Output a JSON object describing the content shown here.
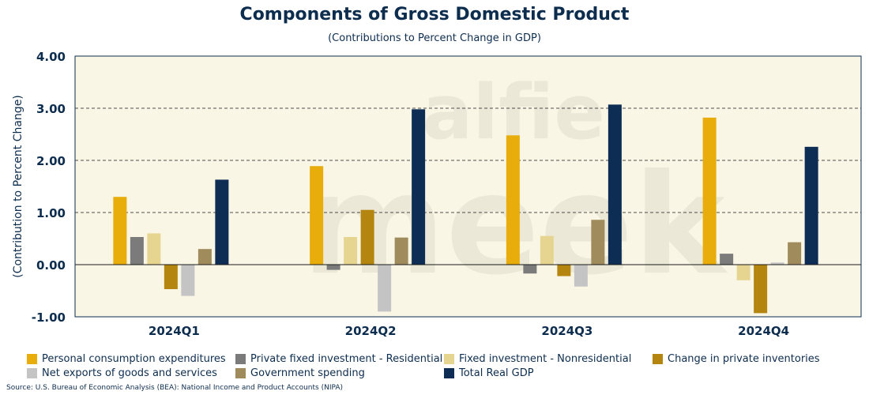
{
  "header": {
    "title": "Components of Gross Domestic Product",
    "subtitle": "(Contributions to Percent Change in GDP)"
  },
  "watermark": {
    "lines": [
      "alfie",
      "meek"
    ],
    "color": "#ebe8d7"
  },
  "chart_data": {
    "type": "bar",
    "categories": [
      "2024Q1",
      "2024Q2",
      "2024Q3",
      "2024Q4"
    ],
    "ylabel": "(Contribution to Percent Change)",
    "xlabel": "",
    "ylim": [
      -1.0,
      4.0
    ],
    "yticks": [
      -1.0,
      0.0,
      1.0,
      2.0,
      3.0,
      4.0
    ],
    "ytick_labels": [
      "-1.00",
      "0.00",
      "1.00",
      "2.00",
      "3.00",
      "4.00"
    ],
    "grid": "horizontal dashed",
    "legend_placement": "bottom",
    "plot_background": "#f9f6e6",
    "series": [
      {
        "name": "Personal consumption expenditures",
        "color": "#e8ad0b",
        "values": [
          1.3,
          1.89,
          2.48,
          2.82
        ]
      },
      {
        "name": "Private fixed investment - Residential",
        "color": "#7b7b7b",
        "values": [
          0.53,
          -0.1,
          -0.17,
          0.21
        ]
      },
      {
        "name": "Fixed investment - Nonresidential",
        "color": "#e6d591",
        "values": [
          0.6,
          0.53,
          0.55,
          -0.3
        ]
      },
      {
        "name": "Change in private inventories",
        "color": "#b5860f",
        "values": [
          -0.47,
          1.05,
          -0.22,
          -0.93
        ]
      },
      {
        "name": "Net exports of goods and services",
        "color": "#c4c4c4",
        "values": [
          -0.6,
          -0.9,
          -0.42,
          0.04
        ]
      },
      {
        "name": "Government spending",
        "color": "#a08b5c",
        "values": [
          0.3,
          0.52,
          0.86,
          0.43
        ]
      },
      {
        "name": "Total Real GDP",
        "color": "#0d2d55",
        "values": [
          1.63,
          2.98,
          3.07,
          2.26
        ]
      }
    ]
  },
  "footer": {
    "source": "Source: U.S. Bureau of Economic Analysis (BEA): National Income and Product Accounts (NIPA)"
  }
}
